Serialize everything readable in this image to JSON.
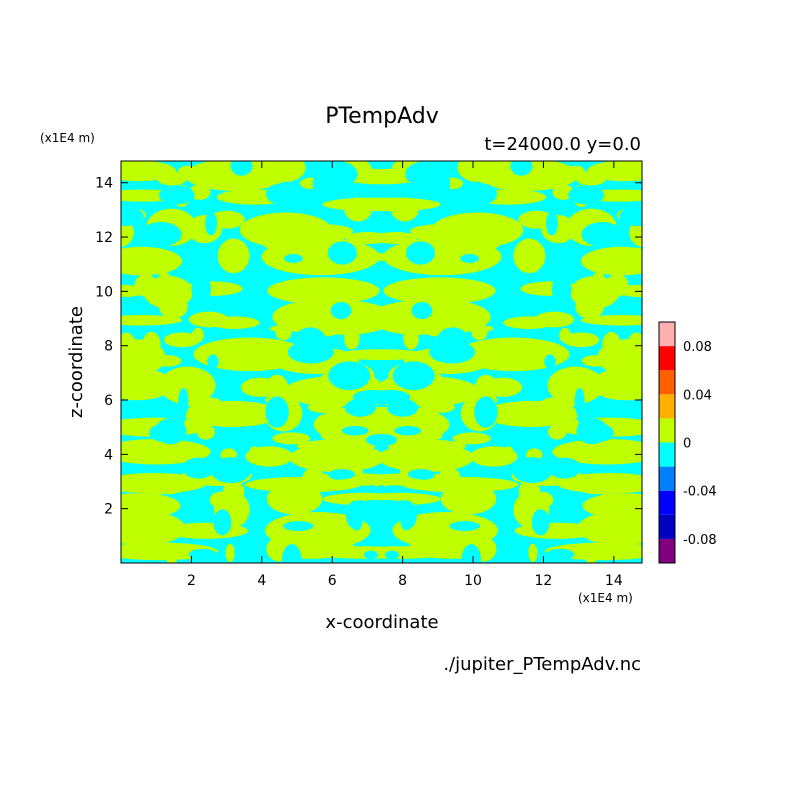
{
  "chart_data": {
    "type": "heatmap",
    "title": "PTempAdv",
    "subtitle": "t=24000.0 y=0.0",
    "xlabel": "x-coordinate",
    "ylabel": "z-coordinate",
    "x_unit": "(x1E4 m)",
    "y_unit": "(x1E4 m)",
    "source": "./jupiter_PTempAdv.nc",
    "xlim": [
      0,
      14.8
    ],
    "ylim": [
      0,
      14.8
    ],
    "x_ticks": [
      2,
      4,
      6,
      8,
      10,
      12,
      14
    ],
    "y_ticks": [
      2,
      4,
      6,
      8,
      10,
      12,
      14
    ],
    "x_tick_labels": [
      "2",
      "4",
      "6",
      "8",
      "10",
      "12",
      "14"
    ],
    "y_tick_labels": [
      "2",
      "4",
      "6",
      "8",
      "10",
      "12",
      "14"
    ],
    "grid": false,
    "field_description_values": {
      "dominant_levels": [
        -0.02,
        0.02
      ]
    },
    "colorbar": {
      "placement": "right",
      "levels": [
        -0.1,
        -0.08,
        -0.06,
        -0.04,
        -0.02,
        0,
        0.02,
        0.04,
        0.06,
        0.08,
        0.1
      ],
      "colors": [
        "#800080",
        "#0000c0",
        "#0000ff",
        "#0080ff",
        "#00ffff",
        "#c0ff00",
        "#ffb000",
        "#ff6000",
        "#ff0000",
        "#ffb0b0"
      ],
      "tick_values": [
        0.08,
        0.04,
        0,
        -0.04,
        -0.08
      ],
      "tick_labels": [
        "0.08",
        "0.04",
        "0",
        "-0.04",
        "-0.08"
      ]
    }
  }
}
